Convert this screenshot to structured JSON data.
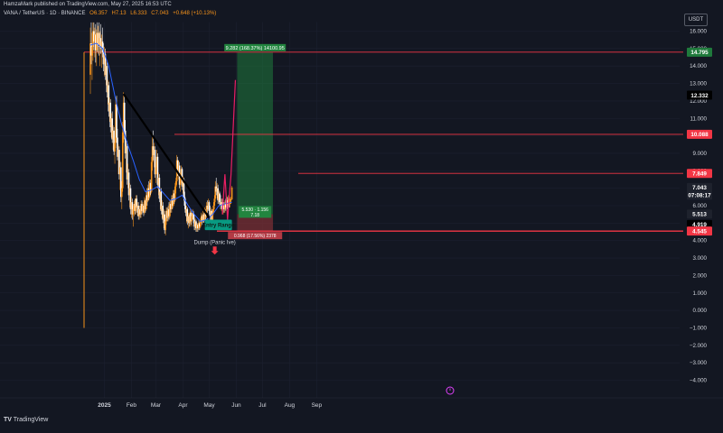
{
  "header": {
    "publisher_line": "HamzaMark published on TradingView.com, May 27, 2025 16:53 UTC",
    "symbol": "VANA / TetherUS · 1D · BINANCE",
    "ohlc": [
      "O6.357",
      "H7.13",
      "L6.333",
      "C7.043",
      "+0.648 (+10.13%)"
    ]
  },
  "currency_badge": "USDT",
  "footer_logo": "TradingView",
  "colors": {
    "background": "#131722",
    "up": "#f7931a",
    "down": "#ffffff",
    "ma": "#2962ff",
    "trendline": "#000000",
    "level": "#f23645",
    "target_zone": "#1f7a3c",
    "stop_zone": "#7a2f34",
    "entry_box": "#089981",
    "projection": "#e91e63"
  },
  "chart_data": {
    "type": "candlestick",
    "y_ticks": [
      "16.000",
      "15.000",
      "14.000",
      "13.000",
      "12.000",
      "11.000",
      "10.000",
      "9.000",
      "8.000",
      "7.000",
      "6.000",
      "5.000",
      "4.000",
      "3.000",
      "2.000",
      "1.000",
      "0.000",
      "−1.000",
      "−2.000",
      "−3.000",
      "−4.000"
    ],
    "x_ticks": [
      "2025",
      "Feb",
      "Mar",
      "Apr",
      "May",
      "Jun",
      "Jul",
      "Aug",
      "Sep"
    ],
    "ylim": [
      -4.5,
      16.5
    ],
    "price_tags": [
      {
        "label": "14.795",
        "value": 14.795,
        "color": "#1f7a3c"
      },
      {
        "label": "12.332",
        "value": 12.332,
        "color": "#000000"
      },
      {
        "label": "10.088",
        "value": 10.088,
        "color": "#f23645"
      },
      {
        "label": "7.849",
        "value": 7.849,
        "color": "#f23645"
      },
      {
        "label": "7.043",
        "value": 7.043,
        "color": "#1e222d"
      },
      {
        "label": "07:08:17",
        "value": 6.6,
        "color": "#1e222d"
      },
      {
        "label": "5.513",
        "value": 5.513,
        "color": "#1e222d"
      },
      {
        "label": "4.919",
        "value": 4.919,
        "color": "#000000"
      },
      {
        "label": "4.545",
        "value": 4.545,
        "color": "#f23645"
      }
    ],
    "levels": [
      14.795,
      10.088,
      7.849,
      4.545
    ],
    "trendline": {
      "from": {
        "x": "2025-01-23",
        "y": 12.4
      },
      "to": {
        "x": "2025-05-01",
        "y": 5.3
      }
    },
    "position": {
      "entry": 5.513,
      "target": 14.795,
      "stop": 4.545,
      "target_label": "9.282 (168.37%) 14100.95",
      "middle_label": [
        "5.530 · 1.156",
        "7.18"
      ],
      "stop_label": "0.968 (17.56%) 2378"
    },
    "annotations": {
      "entry_box": "Entry Range",
      "dump_label": "Dump (Panic Ive)"
    },
    "projection": [
      {
        "x": "2025-05-16",
        "y": 5.5
      },
      {
        "x": "2025-05-19",
        "y": 7.8
      },
      {
        "x": "2025-05-22",
        "y": 5.2
      },
      {
        "x": "2025-05-26",
        "y": 7.8
      },
      {
        "x": "2025-05-31",
        "y": 13.2
      }
    ],
    "candles": [
      [
        "2024-12-16",
        13.5,
        16.2,
        12.4,
        15.3
      ],
      [
        "2024-12-17",
        15.3,
        16.5,
        14.1,
        14.6
      ],
      [
        "2024-12-18",
        14.6,
        15.9,
        13.2,
        15.1
      ],
      [
        "2024-12-19",
        15.1,
        16.5,
        14.3,
        16.0
      ],
      [
        "2024-12-20",
        16.0,
        16.5,
        14.9,
        15.4
      ],
      [
        "2024-12-21",
        15.4,
        16.2,
        14.5,
        15.8
      ],
      [
        "2024-12-22",
        15.8,
        16.4,
        14.2,
        14.9
      ],
      [
        "2024-12-23",
        14.9,
        16.1,
        14.0,
        15.9
      ],
      [
        "2024-12-24",
        15.9,
        16.5,
        14.8,
        15.2
      ],
      [
        "2024-12-25",
        15.2,
        16.3,
        14.7,
        15.9
      ],
      [
        "2024-12-26",
        15.9,
        16.5,
        14.6,
        15.1
      ],
      [
        "2024-12-27",
        15.1,
        16.0,
        14.0,
        15.6
      ],
      [
        "2024-12-28",
        15.6,
        16.4,
        14.7,
        15.0
      ],
      [
        "2024-12-29",
        15.0,
        15.8,
        13.9,
        15.4
      ],
      [
        "2024-12-30",
        15.4,
        16.2,
        14.5,
        14.8
      ],
      [
        "2024-12-31",
        14.8,
        15.3,
        13.7,
        14.1
      ],
      [
        "2025-01-01",
        14.1,
        15.1,
        13.4,
        14.7
      ],
      [
        "2025-01-02",
        14.7,
        15.0,
        13.2,
        13.5
      ],
      [
        "2025-01-03",
        13.5,
        14.4,
        12.9,
        14.0
      ],
      [
        "2025-01-04",
        14.0,
        14.2,
        12.2,
        12.5
      ],
      [
        "2025-01-05",
        12.5,
        13.2,
        11.8,
        12.9
      ],
      [
        "2025-01-06",
        12.9,
        13.1,
        11.1,
        11.4
      ],
      [
        "2025-01-07",
        11.4,
        12.2,
        10.8,
        11.9
      ],
      [
        "2025-01-08",
        11.9,
        12.1,
        10.2,
        10.5
      ],
      [
        "2025-01-09",
        10.5,
        11.3,
        9.9,
        11.0
      ],
      [
        "2025-01-10",
        11.0,
        11.4,
        9.6,
        9.8
      ],
      [
        "2025-01-11",
        9.8,
        10.6,
        9.2,
        10.3
      ],
      [
        "2025-01-12",
        10.3,
        10.5,
        8.9,
        9.1
      ],
      [
        "2025-01-13",
        9.1,
        9.9,
        8.4,
        9.6
      ],
      [
        "2025-01-14",
        9.6,
        12.2,
        9.3,
        11.8
      ],
      [
        "2025-01-15",
        11.8,
        12.3,
        9.6,
        9.9
      ],
      [
        "2025-01-16",
        9.9,
        10.4,
        8.6,
        8.8
      ],
      [
        "2025-01-17",
        8.8,
        9.5,
        7.8,
        9.2
      ],
      [
        "2025-01-18",
        9.2,
        9.4,
        7.5,
        7.8
      ],
      [
        "2025-01-19",
        7.8,
        8.6,
        6.9,
        8.2
      ],
      [
        "2025-01-20",
        8.2,
        8.5,
        6.2,
        6.5
      ],
      [
        "2025-01-21",
        6.5,
        7.4,
        5.8,
        7.0
      ],
      [
        "2025-01-22",
        7.0,
        10.8,
        6.8,
        10.2
      ],
      [
        "2025-01-23",
        10.2,
        12.5,
        9.6,
        11.9
      ],
      [
        "2025-01-24",
        11.9,
        12.4,
        9.8,
        10.3
      ],
      [
        "2025-01-25",
        10.3,
        10.9,
        8.7,
        9.0
      ],
      [
        "2025-01-26",
        9.0,
        9.8,
        7.9,
        9.4
      ],
      [
        "2025-01-27",
        9.4,
        9.7,
        7.2,
        7.5
      ],
      [
        "2025-01-28",
        7.5,
        8.4,
        7.0,
        7.9
      ],
      [
        "2025-01-29",
        7.9,
        8.1,
        6.3,
        6.6
      ],
      [
        "2025-01-30",
        6.6,
        7.3,
        5.9,
        7.0
      ],
      [
        "2025-01-31",
        7.0,
        7.2,
        5.5,
        5.8
      ],
      [
        "2025-02-01",
        5.8,
        6.5,
        5.3,
        6.2
      ],
      [
        "2025-02-02",
        6.2,
        6.4,
        5.2,
        5.5
      ],
      [
        "2025-02-03",
        5.5,
        6.0,
        4.8,
        5.8
      ],
      [
        "2025-02-04",
        5.8,
        6.3,
        5.4,
        6.1
      ],
      [
        "2025-02-05",
        6.1,
        6.4,
        5.5,
        5.7
      ],
      [
        "2025-02-06",
        5.7,
        6.6,
        5.5,
        6.4
      ],
      [
        "2025-02-07",
        6.4,
        6.6,
        5.6,
        5.9
      ],
      [
        "2025-02-08",
        5.9,
        6.2,
        5.4,
        6.0
      ],
      [
        "2025-02-09",
        6.0,
        6.2,
        5.2,
        5.4
      ],
      [
        "2025-02-10",
        5.4,
        6.0,
        5.2,
        5.8
      ],
      [
        "2025-02-11",
        5.8,
        6.0,
        5.3,
        5.5
      ],
      [
        "2025-02-12",
        5.5,
        6.3,
        5.3,
        6.1
      ],
      [
        "2025-02-13",
        6.1,
        6.3,
        5.5,
        5.7
      ],
      [
        "2025-02-14",
        5.7,
        6.2,
        5.6,
        6.0
      ],
      [
        "2025-02-15",
        6.0,
        6.1,
        5.4,
        5.6
      ],
      [
        "2025-02-16",
        5.6,
        6.5,
        5.5,
        6.3
      ],
      [
        "2025-02-17",
        6.3,
        6.4,
        5.6,
        5.8
      ],
      [
        "2025-02-18",
        5.8,
        6.8,
        5.7,
        6.6
      ],
      [
        "2025-02-19",
        6.6,
        7.0,
        6.0,
        6.3
      ],
      [
        "2025-02-20",
        6.3,
        7.2,
        6.2,
        7.0
      ],
      [
        "2025-02-21",
        7.0,
        7.4,
        6.3,
        6.5
      ],
      [
        "2025-02-22",
        6.5,
        7.5,
        6.4,
        7.3
      ],
      [
        "2025-02-23",
        7.3,
        7.5,
        6.6,
        6.8
      ],
      [
        "2025-02-24",
        6.8,
        8.8,
        6.7,
        8.5
      ],
      [
        "2025-02-25",
        8.5,
        10.0,
        8.0,
        9.4
      ],
      [
        "2025-02-26",
        9.4,
        10.3,
        8.6,
        8.9
      ],
      [
        "2025-02-27",
        8.9,
        9.6,
        8.2,
        9.2
      ],
      [
        "2025-02-28",
        9.2,
        9.4,
        7.6,
        7.8
      ],
      [
        "2025-03-01",
        7.8,
        8.5,
        7.3,
        8.2
      ],
      [
        "2025-03-02",
        8.2,
        9.2,
        7.8,
        8.8
      ],
      [
        "2025-03-03",
        8.8,
        9.0,
        7.0,
        7.2
      ],
      [
        "2025-03-04",
        7.2,
        7.9,
        6.6,
        7.6
      ],
      [
        "2025-03-05",
        7.6,
        7.8,
        6.2,
        6.4
      ],
      [
        "2025-03-06",
        6.4,
        7.0,
        5.8,
        6.8
      ],
      [
        "2025-03-07",
        6.8,
        7.0,
        5.5,
        5.7
      ],
      [
        "2025-03-08",
        5.7,
        6.3,
        5.3,
        6.0
      ],
      [
        "2025-03-09",
        6.0,
        6.2,
        5.0,
        5.2
      ],
      [
        "2025-03-10",
        5.2,
        5.8,
        4.7,
        5.5
      ],
      [
        "2025-03-11",
        5.5,
        5.7,
        4.4,
        4.6
      ],
      [
        "2025-03-12",
        4.6,
        5.3,
        4.3,
        5.1
      ],
      [
        "2025-03-13",
        5.1,
        5.9,
        4.9,
        5.7
      ],
      [
        "2025-03-14",
        5.7,
        5.9,
        5.1,
        5.3
      ],
      [
        "2025-03-15",
        5.3,
        6.0,
        5.1,
        5.8
      ],
      [
        "2025-03-16",
        5.8,
        6.2,
        5.2,
        5.4
      ],
      [
        "2025-03-17",
        5.4,
        6.3,
        5.3,
        6.1
      ],
      [
        "2025-03-18",
        6.1,
        6.3,
        5.6,
        5.8
      ],
      [
        "2025-03-19",
        5.8,
        6.6,
        5.6,
        6.4
      ],
      [
        "2025-03-20",
        6.4,
        6.6,
        5.8,
        6.0
      ],
      [
        "2025-03-21",
        6.0,
        6.9,
        5.9,
        6.7
      ],
      [
        "2025-03-22",
        6.7,
        6.9,
        6.1,
        6.3
      ],
      [
        "2025-03-23",
        6.3,
        7.3,
        6.2,
        7.1
      ],
      [
        "2025-03-24",
        7.1,
        7.6,
        6.7,
        7.4
      ],
      [
        "2025-03-25",
        7.4,
        8.9,
        7.2,
        8.6
      ],
      [
        "2025-03-26",
        8.6,
        8.8,
        7.7,
        7.9
      ],
      [
        "2025-03-27",
        7.9,
        8.6,
        7.5,
        8.3
      ],
      [
        "2025-03-28",
        8.3,
        8.5,
        7.0,
        7.2
      ],
      [
        "2025-03-29",
        7.2,
        7.9,
        6.8,
        7.6
      ],
      [
        "2025-03-30",
        7.6,
        8.3,
        7.3,
        8.1
      ],
      [
        "2025-03-31",
        8.1,
        8.2,
        6.9,
        7.1
      ],
      [
        "2025-04-01",
        7.1,
        7.7,
        6.7,
        7.5
      ],
      [
        "2025-04-02",
        7.5,
        7.6,
        6.3,
        6.5
      ],
      [
        "2025-04-03",
        6.5,
        6.8,
        5.8,
        6.0
      ],
      [
        "2025-04-04",
        6.0,
        6.4,
        5.4,
        5.6
      ],
      [
        "2025-04-05",
        5.6,
        6.0,
        5.0,
        5.8
      ],
      [
        "2025-04-06",
        5.8,
        5.9,
        4.9,
        5.1
      ],
      [
        "2025-04-07",
        5.1,
        5.6,
        4.7,
        5.4
      ],
      [
        "2025-04-08",
        5.4,
        5.5,
        4.8,
        5.0
      ],
      [
        "2025-04-09",
        5.0,
        5.8,
        4.8,
        5.6
      ],
      [
        "2025-04-10",
        5.6,
        5.7,
        4.9,
        5.1
      ],
      [
        "2025-04-11",
        5.1,
        5.6,
        4.8,
        5.4
      ],
      [
        "2025-04-12",
        5.4,
        5.8,
        5.2,
        5.6
      ],
      [
        "2025-04-13",
        5.6,
        5.7,
        5.0,
        5.2
      ],
      [
        "2025-04-14",
        5.2,
        5.5,
        4.6,
        4.8
      ],
      [
        "2025-04-15",
        4.8,
        5.3,
        4.6,
        5.1
      ],
      [
        "2025-04-16",
        5.1,
        5.2,
        4.5,
        4.7
      ],
      [
        "2025-04-17",
        4.7,
        5.0,
        4.5,
        4.9
      ],
      [
        "2025-04-18",
        4.9,
        5.0,
        4.5,
        4.7
      ],
      [
        "2025-04-19",
        4.7,
        5.2,
        4.6,
        5.0
      ],
      [
        "2025-04-20",
        5.0,
        5.1,
        4.6,
        4.8
      ],
      [
        "2025-04-21",
        4.8,
        5.3,
        4.7,
        5.1
      ],
      [
        "2025-04-22",
        5.1,
        5.6,
        5.0,
        5.4
      ],
      [
        "2025-04-23",
        5.4,
        5.5,
        4.9,
        5.1
      ],
      [
        "2025-04-24",
        5.1,
        5.7,
        5.0,
        5.5
      ],
      [
        "2025-04-25",
        5.5,
        5.6,
        5.0,
        5.2
      ],
      [
        "2025-04-26",
        5.2,
        5.9,
        5.1,
        5.7
      ],
      [
        "2025-04-27",
        5.7,
        5.8,
        5.2,
        5.4
      ],
      [
        "2025-04-28",
        5.4,
        6.2,
        5.3,
        6.0
      ],
      [
        "2025-04-29",
        6.0,
        6.3,
        5.6,
        5.8
      ],
      [
        "2025-04-30",
        5.8,
        6.4,
        5.7,
        6.2
      ],
      [
        "2025-05-01",
        6.2,
        6.3,
        5.5,
        5.7
      ],
      [
        "2025-05-02",
        5.7,
        6.0,
        5.2,
        5.4
      ],
      [
        "2025-05-03",
        5.4,
        5.9,
        5.2,
        5.7
      ],
      [
        "2025-05-04",
        5.7,
        5.8,
        5.0,
        5.2
      ],
      [
        "2025-05-05",
        5.2,
        5.8,
        5.0,
        5.6
      ],
      [
        "2025-05-06",
        5.6,
        6.2,
        5.5,
        6.0
      ],
      [
        "2025-05-07",
        6.0,
        6.6,
        5.8,
        6.4
      ],
      [
        "2025-05-08",
        6.4,
        7.4,
        6.2,
        7.1
      ],
      [
        "2025-05-09",
        7.1,
        7.6,
        6.6,
        6.8
      ],
      [
        "2025-05-10",
        6.8,
        7.3,
        6.4,
        7.0
      ],
      [
        "2025-05-11",
        7.0,
        7.2,
        6.1,
        6.3
      ],
      [
        "2025-05-12",
        6.3,
        6.9,
        6.1,
        6.7
      ],
      [
        "2025-05-13",
        6.7,
        6.8,
        6.0,
        6.2
      ],
      [
        "2025-05-14",
        6.2,
        6.6,
        5.8,
        6.0
      ],
      [
        "2025-05-15",
        6.0,
        6.4,
        5.7,
        6.2
      ],
      [
        "2025-05-16",
        6.2,
        6.4,
        5.6,
        5.8
      ],
      [
        "2025-05-17",
        5.8,
        6.2,
        5.5,
        6.0
      ],
      [
        "2025-05-18",
        6.0,
        6.2,
        5.6,
        5.8
      ],
      [
        "2025-05-19",
        5.8,
        6.3,
        5.6,
        6.1
      ],
      [
        "2025-05-20",
        6.1,
        6.4,
        5.7,
        5.9
      ],
      [
        "2025-05-21",
        5.9,
        6.5,
        5.8,
        6.3
      ],
      [
        "2025-05-22",
        6.3,
        6.5,
        5.8,
        6.0
      ],
      [
        "2025-05-23",
        6.0,
        6.6,
        5.9,
        6.4
      ],
      [
        "2025-05-24",
        6.4,
        6.5,
        5.9,
        6.1
      ],
      [
        "2025-05-25",
        6.1,
        6.5,
        5.9,
        6.3
      ],
      [
        "2025-05-26",
        6.3,
        6.5,
        6.1,
        6.357
      ],
      [
        "2025-05-27",
        6.357,
        7.13,
        6.333,
        7.043
      ]
    ],
    "ma": [
      [
        "2024-12-16",
        15.2
      ],
      [
        "2024-12-23",
        15.3
      ],
      [
        "2024-12-30",
        15.0
      ],
      [
        "2025-01-06",
        14.0
      ],
      [
        "2025-01-13",
        12.3
      ],
      [
        "2025-01-20",
        10.8
      ],
      [
        "2025-01-27",
        9.6
      ],
      [
        "2025-02-03",
        8.6
      ],
      [
        "2025-02-10",
        7.5
      ],
      [
        "2025-02-17",
        6.8
      ],
      [
        "2025-02-24",
        6.9
      ],
      [
        "2025-03-03",
        7.1
      ],
      [
        "2025-03-10",
        6.7
      ],
      [
        "2025-03-17",
        6.3
      ],
      [
        "2025-03-24",
        6.4
      ],
      [
        "2025-03-31",
        6.6
      ],
      [
        "2025-04-07",
        6.0
      ],
      [
        "2025-04-14",
        5.5
      ],
      [
        "2025-04-21",
        5.1
      ],
      [
        "2025-04-28",
        5.2
      ],
      [
        "2025-05-05",
        5.5
      ],
      [
        "2025-05-12",
        6.0
      ],
      [
        "2025-05-19",
        6.1
      ],
      [
        "2025-05-27",
        6.2
      ]
    ]
  }
}
